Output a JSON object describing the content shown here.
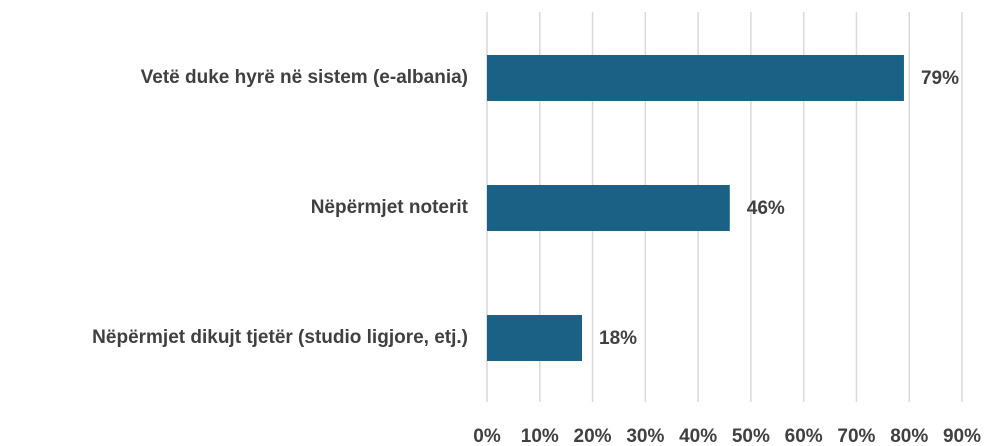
{
  "chart_data": {
    "type": "bar",
    "orientation": "horizontal",
    "categories": [
      "Vetë duke hyrë në sistem (e-albania)",
      "Nëpërmjet noterit",
      "Nëpërmjet dikujt tjetër (studio ligjore, etj.)"
    ],
    "values": [
      79,
      46,
      18
    ],
    "value_labels": [
      "79%",
      "46%",
      "18%"
    ],
    "color": "#1a6185",
    "xlim": [
      0,
      90
    ],
    "xticks": [
      {
        "value": 0,
        "label": "0%"
      },
      {
        "value": 10,
        "label": "10%"
      },
      {
        "value": 20,
        "label": "20%"
      },
      {
        "value": 30,
        "label": "30%"
      },
      {
        "value": 40,
        "label": "40%"
      },
      {
        "value": 50,
        "label": "50%"
      },
      {
        "value": 60,
        "label": "60%"
      },
      {
        "value": 70,
        "label": "70%"
      },
      {
        "value": 80,
        "label": "80%"
      },
      {
        "value": 90,
        "label": "90%"
      }
    ],
    "grid": true
  }
}
